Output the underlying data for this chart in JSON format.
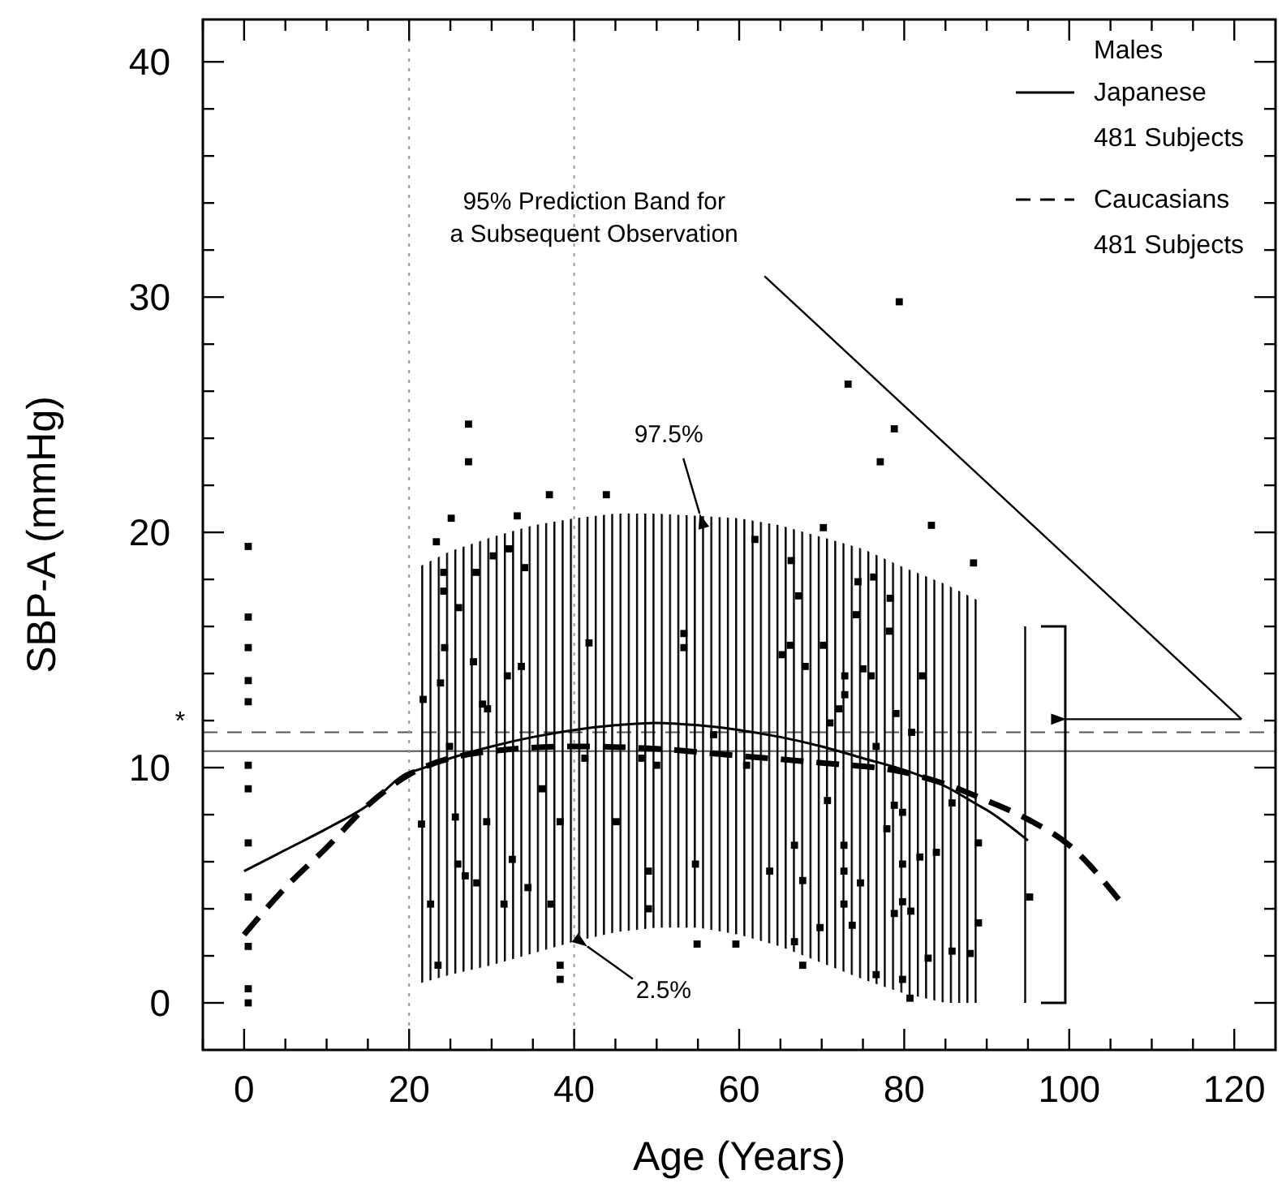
{
  "chart_data": {
    "type": "line",
    "xlabel": "Age (Years)",
    "ylabel": "SBP-A (mmHg)",
    "xlim": [
      -5,
      125
    ],
    "ylim": [
      -2,
      41.8
    ],
    "xticks": [
      {
        "value": -5,
        "label": null
      },
      0,
      {
        "value": 5,
        "label": null
      },
      {
        "value": 10,
        "label": null
      },
      {
        "value": 15,
        "label": null
      },
      20,
      {
        "value": 25,
        "label": null
      },
      {
        "value": 30,
        "label": null
      },
      {
        "value": 35,
        "label": null
      },
      40,
      {
        "value": 45,
        "label": null
      },
      {
        "value": 50,
        "label": null
      },
      {
        "value": 55,
        "label": null
      },
      60,
      {
        "value": 65,
        "label": null
      },
      {
        "value": 70,
        "label": null
      },
      {
        "value": 75,
        "label": null
      },
      80,
      {
        "value": 85,
        "label": null
      },
      {
        "value": 90,
        "label": null
      },
      {
        "value": 95,
        "label": null
      },
      100,
      {
        "value": 105,
        "label": null
      },
      {
        "value": 110,
        "label": null
      },
      {
        "value": 115,
        "label": null
      },
      120
    ],
    "yticks": [
      0,
      {
        "value": 2,
        "label": null
      },
      {
        "value": 4,
        "label": null
      },
      {
        "value": 6,
        "label": null
      },
      {
        "value": 8,
        "label": null
      },
      10,
      {
        "value": 12,
        "label": null
      },
      {
        "value": 14,
        "label": null
      },
      {
        "value": 16,
        "label": null
      },
      {
        "value": 18,
        "label": null
      },
      20,
      {
        "value": 22,
        "label": null
      },
      {
        "value": 24,
        "label": null
      },
      {
        "value": 26,
        "label": null
      },
      {
        "value": 28,
        "label": null
      },
      30,
      {
        "value": 32,
        "label": null
      },
      {
        "value": 34,
        "label": null
      },
      {
        "value": 36,
        "label": null
      },
      {
        "value": 38,
        "label": null
      },
      40
    ],
    "legend": "top right",
    "legend_title": "Males",
    "series": [
      {
        "type": "scatter",
        "marker": "square",
        "color": "#000000",
        "x": [
          0.5,
          0.5,
          0.5,
          0.5,
          0.5,
          0.5,
          0.5,
          0.5,
          0.5,
          0.5,
          0.5,
          0.5,
          23.3,
          25.1,
          33.1,
          37.0,
          43.9,
          24.2,
          24.2,
          26.0,
          28.1,
          30.2,
          32.1,
          34.0,
          21.7,
          23.8,
          24.3,
          27.8,
          28.9,
          29.5,
          31.9,
          33.6,
          41.8,
          53.3,
          53.3,
          21.5,
          22.6,
          23.5,
          24.9,
          25.6,
          25.9,
          26.8,
          28.2,
          29.4,
          31.5,
          32.5,
          36.1,
          34.4,
          38.3,
          38.3,
          37.2,
          38.3,
          41.3,
          45.1,
          48.2,
          49.0,
          49.0,
          50.0,
          54.7,
          54.9,
          56.9,
          70.2,
          83.3,
          88.4,
          61.9,
          66.3,
          67.2,
          65.2,
          66.2,
          68.0,
          70.2,
          60.9,
          63.7,
          66.7,
          67.7,
          66.7,
          67.7,
          59.6,
          70.7,
          71.0,
          72.1,
          72.8,
          72.8,
          74.4,
          74.2,
          76.3,
          75.0,
          76.0,
          76.6,
          72.7,
          72.7,
          72.7,
          73.7,
          69.8,
          74.7,
          76.6,
          78.3,
          78.2,
          79.0,
          78.8,
          77.9,
          78.8,
          79.8,
          79.8,
          79.8,
          79.8,
          80.9,
          80.8,
          82.2,
          81.9,
          82.9,
          83.9,
          80.7,
          85.8,
          85.8,
          88.0,
          89.0,
          89.0,
          95.2,
          79.4,
          73.2,
          77.1,
          78.8,
          27.2,
          27.2
        ],
        "values": [
          19.4,
          16.4,
          15.1,
          13.7,
          12.8,
          10.1,
          9.1,
          6.8,
          4.5,
          2.4,
          0.6,
          0.0,
          19.6,
          20.6,
          20.7,
          21.6,
          21.6,
          18.3,
          17.5,
          16.8,
          18.3,
          19.0,
          19.3,
          18.5,
          12.9,
          13.6,
          15.1,
          14.5,
          12.7,
          12.5,
          13.9,
          14.3,
          15.3,
          15.7,
          15.1,
          7.6,
          4.2,
          1.6,
          10.9,
          7.9,
          5.9,
          5.4,
          5.1,
          7.7,
          4.2,
          6.1,
          9.1,
          4.9,
          1.6,
          1.0,
          4.2,
          7.7,
          10.4,
          7.7,
          10.4,
          5.6,
          4.0,
          10.1,
          5.9,
          2.5,
          11.4,
          20.2,
          20.3,
          18.7,
          19.7,
          18.8,
          17.3,
          14.8,
          15.2,
          14.3,
          15.2,
          10.1,
          5.6,
          6.7,
          5.2,
          2.6,
          1.6,
          2.5,
          8.6,
          11.9,
          12.5,
          13.9,
          13.1,
          17.9,
          16.5,
          18.1,
          14.2,
          13.9,
          10.9,
          6.7,
          5.6,
          4.2,
          3.3,
          3.2,
          5.1,
          1.2,
          17.2,
          15.8,
          12.3,
          8.4,
          7.4,
          3.8,
          8.1,
          5.9,
          4.3,
          1.0,
          11.5,
          3.9,
          13.9,
          6.2,
          1.9,
          6.4,
          0.2,
          8.5,
          2.2,
          2.1,
          6.8,
          3.4,
          4.5,
          29.8,
          26.3,
          23.0,
          24.4,
          24.6,
          23.0
        ]
      },
      {
        "name": "Japanese 481 Subjects",
        "color": "#000000",
        "line_style": "solid",
        "x": [
          0,
          5,
          10,
          15,
          20,
          21,
          25,
          30,
          35,
          40,
          45,
          50,
          55,
          60,
          65,
          70,
          75,
          80,
          85,
          89,
          90,
          95
        ],
        "values": [
          5.6,
          6.5,
          7.4,
          8.4,
          9.8,
          9.9,
          10.4,
          10.9,
          11.3,
          11.6,
          11.8,
          11.9,
          11.8,
          11.6,
          11.3,
          10.9,
          10.4,
          9.9,
          9.2,
          8.4,
          8.2,
          6.9
        ],
        "lower": [
          null,
          null,
          null,
          null,
          null,
          0.8,
          1.2,
          1.6,
          2.1,
          2.6,
          3.0,
          3.2,
          3.2,
          2.9,
          2.4,
          1.7,
          1.0,
          0.4,
          0,
          0,
          null,
          0
        ],
        "upper": [
          null,
          null,
          null,
          null,
          null,
          18.5,
          19.2,
          19.8,
          20.3,
          20.6,
          20.8,
          20.8,
          20.7,
          20.6,
          20.3,
          19.8,
          19.3,
          18.5,
          17.8,
          17.1,
          null,
          16.0
        ]
      },
      {
        "name": "Caucasians 481 Subjects",
        "color": "#000000",
        "line_style": "dashed",
        "x": [
          0,
          5,
          10,
          15,
          20,
          30,
          40,
          50,
          60,
          70,
          80,
          85,
          90,
          95,
          100,
          106
        ],
        "values": [
          2.9,
          4.9,
          6.6,
          8.4,
          9.7,
          10.7,
          10.9,
          10.8,
          10.5,
          10.2,
          9.8,
          9.3,
          8.6,
          7.8,
          6.7,
          4.4
        ]
      }
    ],
    "ref_lines": [
      {
        "axis": "y",
        "value": 11.5,
        "label": "*",
        "line_style": "dashed",
        "color": "#555555"
      },
      {
        "axis": "y",
        "value": 10.7,
        "line_style": "solid",
        "color": "#555555"
      },
      {
        "axis": "x",
        "value": 20,
        "line_style": "dotted",
        "color": "#999999"
      },
      {
        "axis": "x",
        "value": 40,
        "line_style": "dotted",
        "color": "#999999"
      }
    ],
    "annotations": [
      "95% Prediction Band for a Subsequent Observation",
      {
        "text": "97.5%",
        "x": 55.2,
        "y": 20.8
      },
      {
        "text": "2.5%",
        "x": 41.6,
        "y": 2.4
      }
    ]
  }
}
